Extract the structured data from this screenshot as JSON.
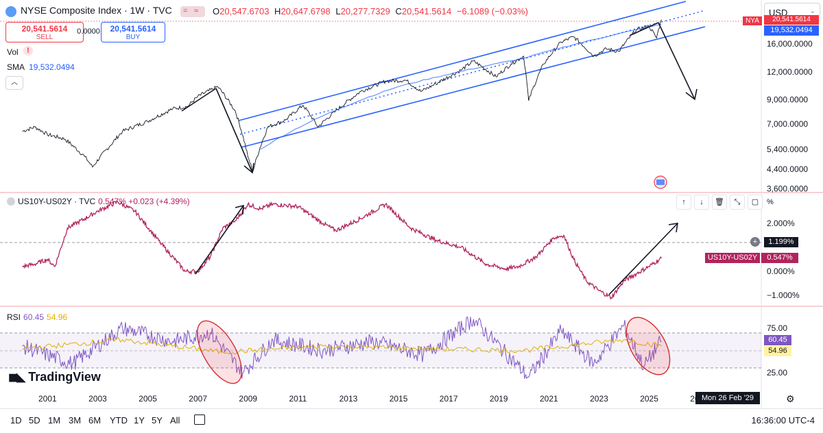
{
  "header": {
    "title": "NYSE Composite Index · 1W · TVC",
    "ohlc": {
      "o_label": "O",
      "o": "20,547.6703",
      "h_label": "H",
      "h": "20,647.6798",
      "l_label": "L",
      "l": "20,277.7329",
      "c_label": "C",
      "c": "20,541.5614",
      "change": "−6.1089 (−0.03%)"
    },
    "sell": {
      "price": "20,541.5614",
      "label": "SELL"
    },
    "buy": {
      "price": "20,541.5614",
      "label": "BUY"
    },
    "spread": "0.0000",
    "vol_label": "Vol",
    "sma_label": "SMA",
    "sma_value": "19,532.0494",
    "currency": "USD",
    "symbol_badge": "NYA",
    "last_price_tag": "20,541.5614",
    "sma_tag": "19,532.0494"
  },
  "pane2": {
    "title": "US10Y-US02Y · TVC",
    "value": "0.547% +0.023 (+4.39%)",
    "unit_label": "%",
    "crosshair_tag": "1.199%",
    "series_tag_name": "US10Y-US02Y",
    "series_tag_value": "0.547%"
  },
  "pane3": {
    "title": "RSI",
    "rsi": "60.45",
    "rsi_ma": "54.96",
    "tag_rsi": "60.45",
    "tag_rsi_ma": "54.96"
  },
  "branding": "TradingView",
  "crosshair_date": "Mon 26 Feb '29",
  "timeframes": [
    "1D",
    "5D",
    "1M",
    "3M",
    "6M",
    "YTD",
    "1Y",
    "5Y",
    "All"
  ],
  "clock": "16:36:00 UTC-4",
  "colors": {
    "price_line": "#131722",
    "sma": "#2962ff",
    "channel": "#2962ff",
    "spread": "#b0245d",
    "rsi": "#7e57c2",
    "rsi_ma": "#e0b000",
    "red": "#f23645"
  },
  "chart_data": [
    {
      "type": "line",
      "title": "NYSE Composite Index · 1W · TVC",
      "x_ticks": [
        "2001",
        "2003",
        "2005",
        "2007",
        "2009",
        "2011",
        "2013",
        "2015",
        "2017",
        "2019",
        "2021",
        "2023",
        "2025",
        "20"
      ],
      "y_ticks": [
        "3,600.0000",
        "4,400.0000",
        "5,400.0000",
        "7,000.0000",
        "9,000.0000",
        "12,000.0000",
        "16,000.0000"
      ],
      "y_scale": "log",
      "series": [
        {
          "name": "NYSE Composite Index",
          "x": [
            2000,
            2000.5,
            2001,
            2001.7,
            2002.5,
            2002.8,
            2003.5,
            2004,
            2005,
            2006,
            2006.6,
            2007.0,
            2007.8,
            2008.5,
            2009.0,
            2009.2,
            2009.8,
            2010.5,
            2011.2,
            2011.8,
            2012.5,
            2013.5,
            2014.5,
            2015.3,
            2015.9,
            2016.5,
            2017.5,
            2018.0,
            2018.9,
            2019.5,
            2020.0,
            2020.2,
            2020.8,
            2021.5,
            2022.0,
            2022.8,
            2023.3,
            2023.8,
            2024.5,
            2025.0,
            2025.3,
            2025.5
          ],
          "y": [
            6500,
            6800,
            6300,
            6000,
            5000,
            4500,
            5600,
            6500,
            7200,
            8200,
            8400,
            9300,
            10300,
            8000,
            5000,
            4300,
            6800,
            7300,
            8500,
            6800,
            8000,
            9800,
            10900,
            11000,
            9800,
            10600,
            12200,
            13400,
            11400,
            13000,
            14100,
            8900,
            13000,
            16300,
            17200,
            14100,
            15200,
            14800,
            18500,
            19200,
            17000,
            20541
          ]
        },
        {
          "name": "SMA",
          "x": [
            2009.5,
            2015,
            2020,
            2025.5
          ],
          "y": [
            5400,
            10300,
            13800,
            19532
          ]
        }
      ],
      "annotations": [
        "ascending channel",
        "arrow up-right",
        "arrow down to 2009 low",
        "projected arrow down"
      ]
    },
    {
      "type": "line",
      "title": "US10Y-US02Y · TVC",
      "y_ticks": [
        "2.000%",
        "1.199%",
        "0.000%",
        "−1.000%"
      ],
      "series": [
        {
          "name": "US10Y-US02Y",
          "x": [
            2000,
            2000.5,
            2001,
            2001.3,
            2001.8,
            2002.5,
            2003.0,
            2003.8,
            2004.5,
            2005.5,
            2006.5,
            2007.0,
            2007.5,
            2008.0,
            2008.5,
            2009.0,
            2009.5,
            2010.0,
            2011.0,
            2012.0,
            2012.5,
            2013.5,
            2014.5,
            2015.5,
            2016.5,
            2017.5,
            2018.5,
            2019.3,
            2019.8,
            2020.5,
            2021.2,
            2021.6,
            2022.0,
            2022.5,
            2023.0,
            2023.5,
            2024.0,
            2024.5,
            2025.0,
            2025.5
          ],
          "y": [
            0.2,
            0.3,
            0.5,
            0.2,
            1.8,
            2.2,
            2.5,
            2.9,
            2.5,
            1.2,
            0.0,
            0.0,
            0.6,
            1.8,
            2.1,
            2.8,
            2.6,
            2.8,
            2.7,
            2.0,
            1.7,
            2.2,
            2.8,
            1.8,
            1.3,
            1.0,
            0.3,
            0.1,
            0.2,
            0.6,
            1.4,
            1.5,
            0.5,
            -0.4,
            -0.8,
            -1.1,
            -0.4,
            -0.1,
            0.2,
            0.547
          ]
        }
      ]
    },
    {
      "type": "line",
      "title": "RSI",
      "y_ticks": [
        "75.00",
        "25.00"
      ],
      "bands": [
        70,
        30
      ],
      "series": [
        {
          "name": "RSI",
          "x": [
            2000,
            2002,
            2004,
            2006,
            2007.5,
            2008.8,
            2010,
            2012,
            2014,
            2016,
            2018,
            2020.2,
            2021.5,
            2022.8,
            2024.0,
            2024.8,
            2025.5
          ],
          "y": [
            55,
            35,
            75,
            60,
            70,
            25,
            62,
            50,
            60,
            45,
            85,
            20,
            72,
            35,
            78,
            32,
            60.45
          ]
        },
        {
          "name": "RSI MA",
          "x": [
            2000,
            2004,
            2008,
            2012,
            2016,
            2020,
            2024,
            2025.5
          ],
          "y": [
            52,
            62,
            48,
            55,
            52,
            50,
            62,
            54.96
          ]
        }
      ]
    }
  ]
}
